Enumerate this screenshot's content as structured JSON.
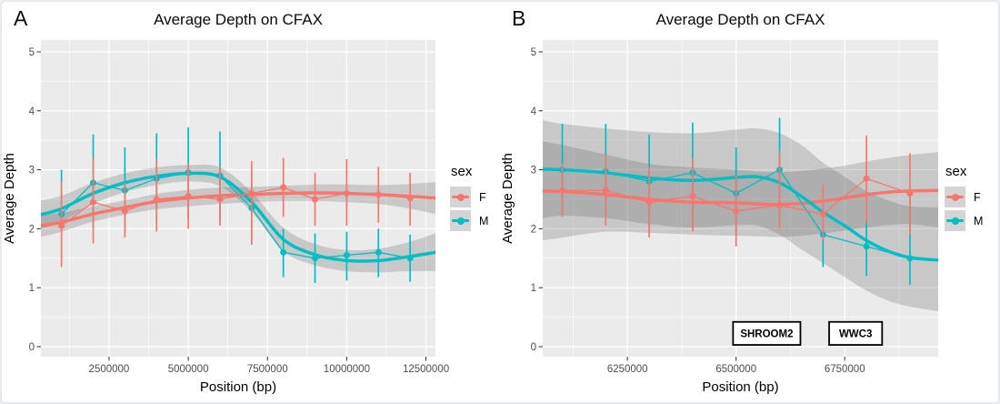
{
  "legend": {
    "title": "sex",
    "position": "right",
    "items": [
      {
        "label": "F",
        "color": "#F8766D"
      },
      {
        "label": "M",
        "color": "#00BFC4"
      }
    ]
  },
  "panels": [
    {
      "label": "A"
    },
    {
      "label": "B"
    }
  ],
  "style": {
    "panel_bg": "#EBEBEB",
    "grid_color": "#FFFFFF",
    "ribbon_color": "#606060",
    "ribbon_opacity": 0.25,
    "tick_text_color": "#4d4d4d",
    "axis_text_color": "#000000"
  },
  "chart_data": [
    {
      "type": "line",
      "panel": "A",
      "title": "Average Depth on CFAX",
      "xlabel": "Position (bp)",
      "ylabel": "Average Depth",
      "xlim": [
        350000,
        12800000
      ],
      "ylim": [
        -0.17,
        5.2
      ],
      "grid": true,
      "legend_position": "right",
      "xticks": {
        "values": [
          2500000,
          5000000,
          7500000,
          10000000,
          12500000
        ],
        "labels": [
          "2500000",
          "5000000",
          "7500000",
          "10000000",
          "12500000"
        ]
      },
      "yticks": {
        "values": [
          0,
          1,
          2,
          3,
          4,
          5
        ],
        "labels": [
          "0",
          "1",
          "2",
          "3",
          "4",
          "5"
        ]
      },
      "series": [
        {
          "name": "F",
          "color": "#F8766D",
          "x": [
            1000000,
            2000000,
            3000000,
            4000000,
            5000000,
            6000000,
            7000000,
            8000000,
            9000000,
            10000000,
            11000000,
            12000000
          ],
          "y": [
            2.05,
            2.45,
            2.3,
            2.5,
            2.55,
            2.5,
            2.6,
            2.7,
            2.5,
            2.6,
            2.58,
            2.52
          ],
          "ylo": [
            1.35,
            1.75,
            1.85,
            1.95,
            2.0,
            2.05,
            1.75,
            2.2,
            2.05,
            2.05,
            2.1,
            2.05
          ],
          "yhi": [
            2.8,
            3.2,
            2.78,
            3.18,
            3.1,
            3.05,
            3.15,
            3.2,
            2.95,
            3.18,
            3.05,
            2.95
          ],
          "smooth": {
            "x": [
              350000,
              1000000,
              2000000,
              3000000,
              4000000,
              5000000,
              6000000,
              7000000,
              8000000,
              9000000,
              10000000,
              11000000,
              12000000,
              12800000
            ],
            "y": [
              2.05,
              2.11,
              2.25,
              2.36,
              2.46,
              2.52,
              2.56,
              2.58,
              2.6,
              2.61,
              2.6,
              2.58,
              2.55,
              2.52
            ],
            "lo": [
              1.86,
              1.95,
              2.12,
              2.24,
              2.33,
              2.38,
              2.42,
              2.45,
              2.47,
              2.47,
              2.45,
              2.42,
              2.34,
              2.25
            ],
            "hi": [
              2.24,
              2.27,
              2.38,
              2.48,
              2.59,
              2.66,
              2.7,
              2.71,
              2.73,
              2.75,
              2.75,
              2.74,
              2.76,
              2.79
            ]
          }
        },
        {
          "name": "M",
          "color": "#00BFC4",
          "x": [
            1000000,
            2000000,
            3000000,
            4000000,
            5000000,
            6000000,
            7000000,
            8000000,
            9000000,
            10000000,
            11000000,
            12000000
          ],
          "y": [
            2.25,
            2.78,
            2.65,
            2.85,
            2.95,
            2.9,
            2.35,
            1.6,
            1.5,
            1.55,
            1.6,
            1.5
          ],
          "ylo": [
            2.08,
            2.0,
            1.92,
            2.1,
            2.18,
            2.12,
            1.73,
            1.18,
            1.08,
            1.12,
            1.18,
            1.1
          ],
          "yhi": [
            3.0,
            3.6,
            3.38,
            3.62,
            3.72,
            3.65,
            2.95,
            2.0,
            1.92,
            1.95,
            2.0,
            1.9
          ],
          "smooth": {
            "x": [
              350000,
              1000000,
              2000000,
              3000000,
              4000000,
              5000000,
              6000000,
              7000000,
              8000000,
              9000000,
              10000000,
              11000000,
              12000000,
              12800000
            ],
            "y": [
              2.24,
              2.34,
              2.6,
              2.78,
              2.89,
              2.94,
              2.88,
              2.45,
              1.82,
              1.56,
              1.46,
              1.46,
              1.53,
              1.6
            ],
            "lo": [
              2.0,
              2.12,
              2.42,
              2.62,
              2.74,
              2.8,
              2.72,
              2.28,
              1.62,
              1.38,
              1.28,
              1.26,
              1.28,
              1.28
            ],
            "hi": [
              2.48,
              2.56,
              2.78,
              2.94,
              3.04,
              3.08,
              3.04,
              2.62,
              2.02,
              1.74,
              1.64,
              1.66,
              1.78,
              1.92
            ]
          }
        }
      ],
      "annotations": []
    },
    {
      "type": "line",
      "panel": "B",
      "title": "Average Depth on CFAX",
      "xlabel": "Position (bp)",
      "ylabel": "Average Depth",
      "xlim": [
        6055000,
        6965000
      ],
      "ylim": [
        -0.17,
        5.2
      ],
      "grid": true,
      "legend_position": "right",
      "xticks": {
        "values": [
          6250000,
          6500000,
          6750000
        ],
        "labels": [
          "6250000",
          "6500000",
          "6750000"
        ]
      },
      "yticks": {
        "values": [
          0,
          1,
          2,
          3,
          4,
          5
        ],
        "labels": [
          "0",
          "1",
          "2",
          "3",
          "4",
          "5"
        ]
      },
      "series": [
        {
          "name": "F",
          "color": "#F8766D",
          "x": [
            6100000,
            6200000,
            6300000,
            6400000,
            6500000,
            6600000,
            6700000,
            6800000,
            6900000
          ],
          "y": [
            2.65,
            2.65,
            2.45,
            2.55,
            2.3,
            2.4,
            2.25,
            2.85,
            2.6
          ],
          "ylo": [
            2.2,
            2.05,
            1.85,
            1.95,
            1.7,
            2.0,
            1.8,
            2.1,
            1.9
          ],
          "yhi": [
            3.1,
            3.25,
            3.05,
            3.2,
            2.9,
            3.3,
            2.75,
            3.58,
            3.28
          ],
          "smooth": {
            "x": [
              6055000,
              6100000,
              6200000,
              6300000,
              6400000,
              6500000,
              6550000,
              6600000,
              6650000,
              6700000,
              6750000,
              6800000,
              6850000,
              6900000,
              6965000
            ],
            "y": [
              2.64,
              2.63,
              2.58,
              2.5,
              2.45,
              2.44,
              2.42,
              2.41,
              2.43,
              2.47,
              2.52,
              2.58,
              2.62,
              2.64,
              2.65
            ],
            "lo": [
              1.8,
              1.85,
              1.95,
              1.93,
              1.9,
              1.88,
              1.87,
              1.86,
              1.88,
              1.92,
              1.97,
              2.02,
              2.06,
              2.08,
              2.02
            ],
            "hi": [
              3.48,
              3.42,
              3.26,
              3.1,
              3.04,
              3.0,
              2.97,
              2.96,
              2.98,
              3.02,
              3.07,
              3.14,
              3.2,
              3.25,
              3.3
            ]
          }
        },
        {
          "name": "M",
          "color": "#00BFC4",
          "x": [
            6100000,
            6200000,
            6300000,
            6400000,
            6500000,
            6600000,
            6700000,
            6800000,
            6900000
          ],
          "y": [
            3.0,
            2.97,
            2.8,
            2.95,
            2.6,
            3.0,
            1.9,
            1.7,
            1.5
          ],
          "ylo": [
            2.2,
            2.2,
            2.0,
            2.1,
            1.9,
            2.1,
            1.35,
            1.2,
            1.05
          ],
          "yhi": [
            3.78,
            3.78,
            3.6,
            3.8,
            3.38,
            3.88,
            2.45,
            2.12,
            2.6
          ],
          "smooth": {
            "x": [
              6055000,
              6100000,
              6200000,
              6300000,
              6400000,
              6500000,
              6550000,
              6600000,
              6650000,
              6700000,
              6750000,
              6800000,
              6850000,
              6900000,
              6965000
            ],
            "y": [
              3.01,
              3.0,
              2.95,
              2.86,
              2.82,
              2.87,
              2.88,
              2.78,
              2.55,
              2.28,
              2.05,
              1.8,
              1.62,
              1.51,
              1.47
            ],
            "lo": [
              2.18,
              2.22,
              2.18,
              2.08,
              2.02,
              2.06,
              2.05,
              1.9,
              1.65,
              1.42,
              1.18,
              0.95,
              0.78,
              0.68,
              0.6
            ],
            "hi": [
              3.84,
              3.78,
              3.7,
              3.64,
              3.62,
              3.68,
              3.7,
              3.62,
              3.42,
              3.12,
              2.88,
              2.64,
              2.48,
              2.38,
              2.36
            ]
          }
        }
      ],
      "annotations": [
        {
          "label": "SHROOM2",
          "x_start": 6493000,
          "x_end": 6648000,
          "y_bottom": 0.03,
          "y_top": 0.42
        },
        {
          "label": "WWC3",
          "x_start": 6714000,
          "x_end": 6836000,
          "y_bottom": 0.03,
          "y_top": 0.42
        }
      ]
    }
  ]
}
